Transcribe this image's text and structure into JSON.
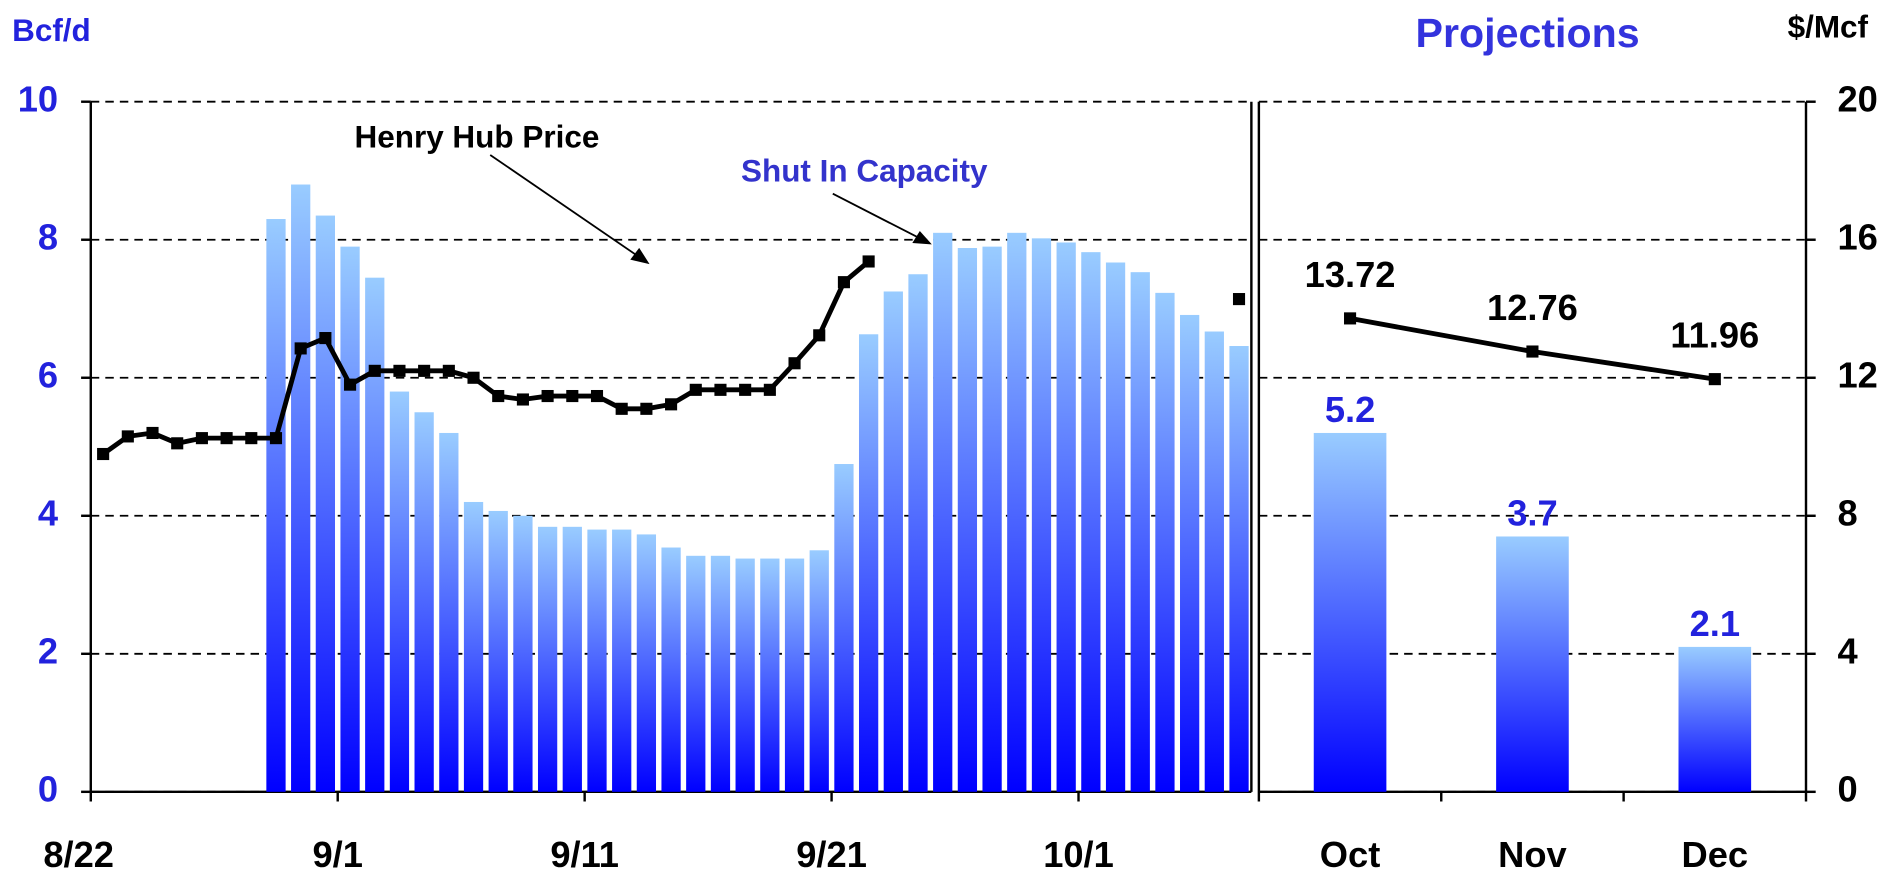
{
  "chart_data": {
    "type": "bar",
    "y_label": "Bcf/d",
    "y2_label": "$/Mcf",
    "ylim": [
      0,
      10
    ],
    "yticks": [
      0,
      2,
      4,
      6,
      8,
      10
    ],
    "y2lim": [
      0,
      20
    ],
    "y2ticks": [
      0,
      4,
      8,
      12,
      16,
      20
    ],
    "grid": true,
    "categories": [
      "8/22",
      null,
      null,
      null,
      null,
      null,
      null,
      null,
      null,
      null,
      "9/1",
      null,
      null,
      null,
      null,
      null,
      null,
      null,
      null,
      null,
      "9/11",
      null,
      null,
      null,
      null,
      null,
      null,
      null,
      null,
      null,
      "9/21",
      null,
      null,
      null,
      null,
      null,
      null,
      null,
      null,
      null,
      "10/1",
      null,
      null,
      null,
      null,
      null,
      null
    ],
    "series": [
      {
        "name": "Shut In Capacity",
        "type": "bar",
        "color": "#99ccff",
        "values": [
          null,
          null,
          null,
          null,
          null,
          null,
          null,
          8.3,
          8.8,
          8.35,
          7.9,
          7.45,
          5.8,
          5.5,
          5.2,
          4.2,
          4.07,
          4.0,
          3.84,
          3.84,
          3.8,
          3.8,
          3.73,
          3.54,
          3.42,
          3.42,
          3.38,
          3.38,
          3.38,
          3.5,
          4.75,
          6.63,
          7.25,
          7.5,
          8.1,
          7.88,
          7.9,
          8.1,
          8.02,
          7.96,
          7.82,
          7.67,
          7.53,
          7.23,
          6.91,
          6.67,
          6.46
        ]
      },
      {
        "name": "Henry Hub Price",
        "type": "line",
        "axis": "y2",
        "color": "#000000",
        "values": [
          9.79,
          10.3,
          10.4,
          10.1,
          10.25,
          10.25,
          10.25,
          10.25,
          12.85,
          13.15,
          11.8,
          12.2,
          12.2,
          12.2,
          12.2,
          12.0,
          11.47,
          11.37,
          11.47,
          11.47,
          11.47,
          11.1,
          11.1,
          11.23,
          11.65,
          11.65,
          11.65,
          11.65,
          12.42,
          13.23,
          14.77,
          15.37,
          null,
          null,
          null,
          null,
          null,
          null,
          null,
          null,
          null,
          null,
          null,
          null,
          null,
          null,
          14.28
        ]
      }
    ],
    "projections": {
      "title": "Projections",
      "categories": [
        "Oct",
        "Nov",
        "Dec"
      ],
      "series": [
        {
          "type": "bar",
          "color": "#99ccff",
          "values": [
            5.2,
            3.7,
            2.1
          ]
        },
        {
          "type": "line",
          "axis": "y2",
          "color": "#000000",
          "values": [
            13.72,
            12.76,
            11.96
          ]
        }
      ]
    }
  }
}
